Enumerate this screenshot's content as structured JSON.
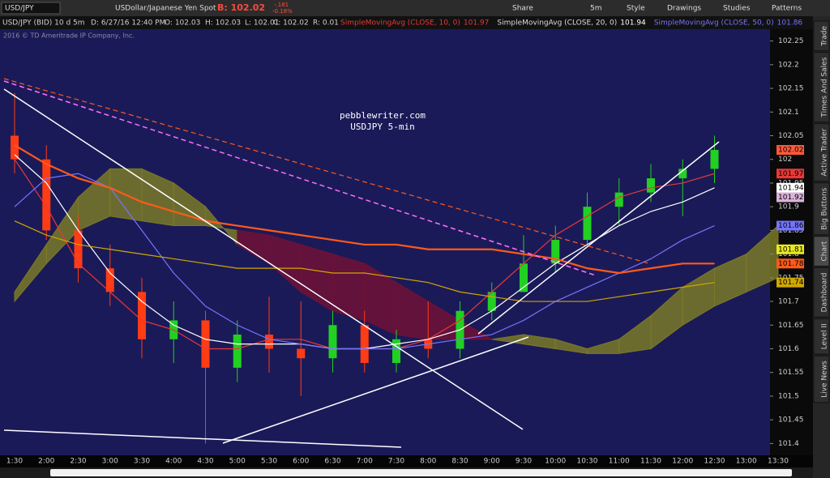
{
  "toolbar": {
    "symbol": "USD/JPY",
    "description": "USDollar/Japanese Yen Spot",
    "bid": "B: 102.02",
    "change": "-.181",
    "change_pct": "-0.18%",
    "buttons": [
      "Share",
      "5m",
      "Style",
      "Drawings",
      "Studies",
      "Patterns"
    ]
  },
  "header": {
    "symbol": "USD/JPY (BID) 10 d 5m",
    "date": "D: 6/27/16 12:40 PM",
    "open": "O: 102.03",
    "high": "H: 102.03",
    "low": "L: 102.01",
    "close": "C: 102.02",
    "range": "R: 0.01"
  },
  "copyright": "2016 © TD Ameritrade IP Company, Inc.",
  "side_tabs": [
    "Trade",
    "Times And Sales",
    "Active Trader",
    "Big Buttons",
    "Chart",
    "Dashboard",
    "Level II",
    "Live News"
  ],
  "chart_data": {
    "type": "candlestick",
    "annotations": [
      "pebblewriter.com",
      "USDJPY 5-min"
    ],
    "categories": [
      "1:30",
      "2:00",
      "2:30",
      "3:00",
      "3:30",
      "4:00",
      "4:30",
      "5:00",
      "5:30",
      "6:00",
      "6:30",
      "7:00",
      "7:30",
      "8:00",
      "8:30",
      "9:00",
      "9:30",
      "10:00",
      "10:30",
      "11:00",
      "11:30",
      "12:00",
      "12:30",
      "13:00",
      "13:30"
    ],
    "open": [
      102.05,
      102.0,
      101.85,
      101.77,
      101.72,
      101.62,
      101.66,
      101.56,
      101.63,
      101.6,
      101.58,
      101.65,
      101.57,
      101.62,
      101.6,
      101.68,
      101.72,
      101.78,
      101.83,
      101.9,
      101.93,
      101.96,
      101.98,
      null,
      null
    ],
    "high": [
      102.14,
      102.03,
      101.88,
      101.82,
      101.75,
      101.7,
      101.68,
      101.66,
      101.71,
      101.7,
      101.68,
      101.68,
      101.64,
      101.7,
      101.7,
      101.74,
      101.84,
      101.86,
      101.93,
      101.96,
      101.99,
      102.0,
      102.05,
      null,
      null
    ],
    "low": [
      101.97,
      101.83,
      101.74,
      101.69,
      101.58,
      101.57,
      101.4,
      101.53,
      101.55,
      101.5,
      101.55,
      101.55,
      101.55,
      101.58,
      101.58,
      101.66,
      101.72,
      101.76,
      101.82,
      101.86,
      101.91,
      101.88,
      101.95,
      null,
      null
    ],
    "close": [
      102.0,
      101.85,
      101.77,
      101.72,
      101.62,
      101.66,
      101.56,
      101.63,
      101.6,
      101.58,
      101.65,
      101.57,
      101.62,
      101.6,
      101.68,
      101.72,
      101.78,
      101.83,
      101.9,
      101.93,
      101.96,
      101.98,
      102.02,
      null,
      null
    ],
    "up_color": "#22d022",
    "down_color": "#ff3c14",
    "series": [
      {
        "name": "SimpleMovingAvg (CLOSE, 10, 0)",
        "color": "#e83838",
        "values": [
          102.0,
          101.9,
          101.78,
          101.72,
          101.66,
          101.64,
          101.6,
          101.6,
          101.62,
          101.62,
          101.6,
          101.6,
          101.6,
          101.62,
          101.66,
          101.72,
          101.78,
          101.84,
          101.88,
          101.92,
          101.94,
          101.95,
          101.97,
          null,
          null
        ]
      },
      {
        "name": "SimpleMovingAvg (CLOSE, 20, 0)",
        "color": "#ffffff",
        "values": [
          102.01,
          101.95,
          101.85,
          101.76,
          101.7,
          101.65,
          101.62,
          101.61,
          101.61,
          101.61,
          101.6,
          101.6,
          101.61,
          101.62,
          101.64,
          101.68,
          101.73,
          101.78,
          101.82,
          101.86,
          101.89,
          101.91,
          101.94,
          null,
          null
        ]
      },
      {
        "name": "SimpleMovingAvg (CLOSE, 50, 0)",
        "color": "#7474ff",
        "values": [
          101.9,
          101.96,
          101.97,
          101.94,
          101.85,
          101.76,
          101.69,
          101.65,
          101.62,
          101.61,
          101.6,
          101.6,
          101.6,
          101.61,
          101.62,
          101.63,
          101.66,
          101.7,
          101.73,
          101.76,
          101.79,
          101.83,
          101.86,
          null,
          null
        ]
      },
      {
        "color": "#ff5a1a",
        "values": [
          102.03,
          101.99,
          101.96,
          101.94,
          101.91,
          101.89,
          101.87,
          101.86,
          101.85,
          101.84,
          101.83,
          101.82,
          101.82,
          101.81,
          101.81,
          101.81,
          101.8,
          101.79,
          101.77,
          101.76,
          101.77,
          101.78,
          101.78,
          null,
          null
        ]
      },
      {
        "color": "#d0a800",
        "values": [
          101.87,
          101.84,
          101.82,
          101.81,
          101.8,
          101.79,
          101.78,
          101.77,
          101.77,
          101.77,
          101.76,
          101.76,
          101.75,
          101.74,
          101.72,
          101.71,
          101.7,
          101.7,
          101.7,
          101.71,
          101.72,
          101.73,
          101.74,
          null,
          null
        ]
      }
    ],
    "cloud": {
      "up_color": "#7a7a28",
      "down_color": "#6e1236",
      "span_a": [
        101.72,
        101.82,
        101.92,
        101.98,
        101.98,
        101.95,
        101.9,
        101.82,
        101.78,
        101.72,
        101.68,
        101.66,
        101.63,
        101.62,
        101.62,
        101.62,
        101.63,
        101.62,
        101.6,
        101.62,
        101.67,
        101.73,
        101.77,
        101.8,
        101.86
      ],
      "span_b": [
        101.7,
        101.78,
        101.85,
        101.88,
        101.87,
        101.86,
        101.86,
        101.85,
        101.84,
        101.82,
        101.8,
        101.78,
        101.74,
        101.7,
        101.66,
        101.62,
        101.61,
        101.6,
        101.59,
        101.59,
        101.6,
        101.65,
        101.69,
        101.72,
        101.75
      ]
    },
    "price_markers": [
      {
        "value": 101.92,
        "color": "#d9b3d9"
      },
      {
        "value": 101.81,
        "color": "#e8e820"
      }
    ],
    "ylim": [
      101.375,
      102.275
    ],
    "yticks": [
      101.4,
      101.45,
      101.5,
      101.55,
      101.6,
      101.65,
      101.7,
      101.75,
      101.8,
      101.85,
      101.9,
      101.95,
      102,
      102.05,
      102.1,
      102.15,
      102.2,
      102.25
    ],
    "grid": false
  }
}
